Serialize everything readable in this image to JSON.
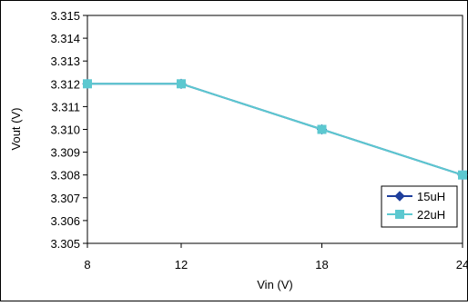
{
  "chart_data": {
    "type": "line",
    "title": "",
    "xlabel": "Vin (V)",
    "ylabel": "Vout (V)",
    "x": [
      8,
      12,
      18,
      24
    ],
    "x_tick_labels": [
      "8",
      "12",
      "18",
      "24"
    ],
    "y_tick_labels": [
      "3.305",
      "3.306",
      "3.307",
      "3.308",
      "3.309",
      "3.310",
      "3.311",
      "3.312",
      "3.313",
      "3.314",
      "3.315"
    ],
    "ylim": [
      3.305,
      3.315
    ],
    "grid": false,
    "legend_position": "bottom-right",
    "series": [
      {
        "name": "15uH",
        "values": [
          3.312,
          3.312,
          3.31,
          3.308
        ],
        "color": "#1f3f9c",
        "marker": "diamond"
      },
      {
        "name": "22uH",
        "values": [
          3.312,
          3.312,
          3.31,
          3.308
        ],
        "color": "#5cc8d0",
        "marker": "square"
      }
    ]
  }
}
